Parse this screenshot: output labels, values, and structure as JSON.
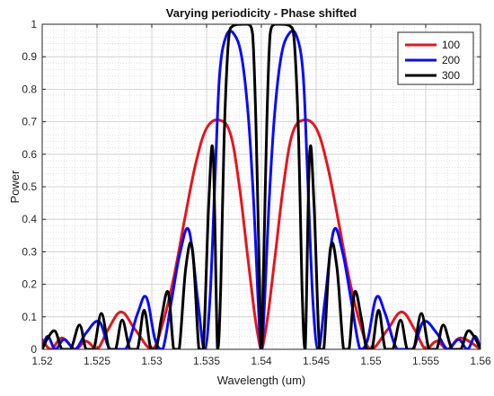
{
  "chart_data": {
    "type": "line",
    "title": "Varying periodicity - Phase shifted",
    "xlabel": "Wavelength (um)",
    "ylabel": "Power",
    "xlim": [
      1.52,
      1.56
    ],
    "ylim": [
      0,
      1
    ],
    "xticks": [
      "1.52",
      "1.525",
      "1.53",
      "1.535",
      "1.54",
      "1.545",
      "1.55",
      "1.555",
      "1.56"
    ],
    "yticks": [
      "0",
      "0.1",
      "0.2",
      "0.3",
      "0.4",
      "0.5",
      "0.6",
      "0.7",
      "0.8",
      "0.9",
      "1"
    ],
    "grid": true,
    "minor_grid": true,
    "legend_position": "top-right",
    "series": [
      {
        "name": "100",
        "color": "#e8141c",
        "points": [
          [
            1.52,
            0.03
          ],
          [
            1.5208,
            0.0
          ],
          [
            1.5218,
            0.035
          ],
          [
            1.523,
            0.0
          ],
          [
            1.524,
            0.025
          ],
          [
            1.525,
            0.0
          ],
          [
            1.526,
            0.06
          ],
          [
            1.5272,
            0.115
          ],
          [
            1.5285,
            0.06
          ],
          [
            1.53,
            0.0
          ],
          [
            1.531,
            0.08
          ],
          [
            1.532,
            0.22
          ],
          [
            1.533,
            0.4
          ],
          [
            1.534,
            0.57
          ],
          [
            1.535,
            0.68
          ],
          [
            1.5362,
            0.705
          ],
          [
            1.5372,
            0.66
          ],
          [
            1.538,
            0.5
          ],
          [
            1.5387,
            0.3
          ],
          [
            1.5393,
            0.13
          ],
          [
            1.5397,
            0.04
          ],
          [
            1.54,
            0.0
          ],
          [
            1.5403,
            0.04
          ],
          [
            1.5407,
            0.13
          ],
          [
            1.5413,
            0.3
          ],
          [
            1.542,
            0.5
          ],
          [
            1.5428,
            0.66
          ],
          [
            1.5438,
            0.705
          ],
          [
            1.545,
            0.68
          ],
          [
            1.546,
            0.57
          ],
          [
            1.547,
            0.4
          ],
          [
            1.548,
            0.22
          ],
          [
            1.549,
            0.08
          ],
          [
            1.55,
            0.0
          ],
          [
            1.5515,
            0.06
          ],
          [
            1.5528,
            0.115
          ],
          [
            1.554,
            0.06
          ],
          [
            1.555,
            0.0
          ],
          [
            1.556,
            0.025
          ],
          [
            1.557,
            0.0
          ],
          [
            1.5582,
            0.035
          ],
          [
            1.56,
            0.0
          ]
        ]
      },
      {
        "name": "200",
        "color": "#0a0aff",
        "points": [
          [
            1.52,
            0.0
          ],
          [
            1.5205,
            0.04
          ],
          [
            1.5212,
            0.0
          ],
          [
            1.522,
            0.03
          ],
          [
            1.523,
            0.0
          ],
          [
            1.524,
            0.05
          ],
          [
            1.5252,
            0.085
          ],
          [
            1.5262,
            0.0
          ],
          [
            1.5276,
            0.0
          ],
          [
            1.5287,
            0.11
          ],
          [
            1.5295,
            0.16
          ],
          [
            1.5303,
            0.03
          ],
          [
            1.531,
            0.0
          ],
          [
            1.5318,
            0.15
          ],
          [
            1.5326,
            0.3
          ],
          [
            1.5334,
            0.365
          ],
          [
            1.5342,
            0.15
          ],
          [
            1.5348,
            0.0
          ],
          [
            1.5353,
            0.15
          ],
          [
            1.5358,
            0.55
          ],
          [
            1.5362,
            0.85
          ],
          [
            1.5368,
            0.965
          ],
          [
            1.5375,
            0.97
          ],
          [
            1.5382,
            0.9
          ],
          [
            1.5388,
            0.72
          ],
          [
            1.5393,
            0.45
          ],
          [
            1.5397,
            0.15
          ],
          [
            1.54,
            0.0
          ],
          [
            1.5403,
            0.15
          ],
          [
            1.5407,
            0.45
          ],
          [
            1.5412,
            0.72
          ],
          [
            1.5418,
            0.9
          ],
          [
            1.5425,
            0.97
          ],
          [
            1.5432,
            0.965
          ],
          [
            1.5438,
            0.85
          ],
          [
            1.5442,
            0.55
          ],
          [
            1.5447,
            0.15
          ],
          [
            1.5452,
            0.0
          ],
          [
            1.5458,
            0.15
          ],
          [
            1.5466,
            0.365
          ],
          [
            1.5474,
            0.3
          ],
          [
            1.5482,
            0.15
          ],
          [
            1.549,
            0.0
          ],
          [
            1.5497,
            0.03
          ],
          [
            1.5505,
            0.16
          ],
          [
            1.5513,
            0.11
          ],
          [
            1.5524,
            0.0
          ],
          [
            1.5538,
            0.0
          ],
          [
            1.5548,
            0.085
          ],
          [
            1.556,
            0.05
          ],
          [
            1.557,
            0.0
          ],
          [
            1.558,
            0.03
          ],
          [
            1.5588,
            0.0
          ],
          [
            1.5595,
            0.04
          ],
          [
            1.56,
            0.0
          ]
        ]
      },
      {
        "name": "300",
        "color": "#000000",
        "points": [
          [
            1.52,
            0.0
          ],
          [
            1.5206,
            0.04
          ],
          [
            1.5212,
            0.055
          ],
          [
            1.5218,
            0.0
          ],
          [
            1.5226,
            0.0
          ],
          [
            1.5234,
            0.075
          ],
          [
            1.524,
            0.0
          ],
          [
            1.5247,
            0.0
          ],
          [
            1.5254,
            0.11
          ],
          [
            1.5261,
            0.0
          ],
          [
            1.5267,
            0.0
          ],
          [
            1.5273,
            0.09
          ],
          [
            1.528,
            0.0
          ],
          [
            1.5287,
            0.0
          ],
          [
            1.5293,
            0.12
          ],
          [
            1.5299,
            0.0
          ],
          [
            1.5304,
            0.0
          ],
          [
            1.5309,
            0.1
          ],
          [
            1.5315,
            0.175
          ],
          [
            1.532,
            0.0
          ],
          [
            1.5325,
            0.0
          ],
          [
            1.5331,
            0.25
          ],
          [
            1.5337,
            0.31
          ],
          [
            1.5343,
            0.0
          ],
          [
            1.5347,
            0.0
          ],
          [
            1.5352,
            0.45
          ],
          [
            1.5356,
            0.6
          ],
          [
            1.536,
            0.0
          ],
          [
            1.5363,
            0.2
          ],
          [
            1.5366,
            0.65
          ],
          [
            1.537,
            0.95
          ],
          [
            1.5374,
            0.995
          ],
          [
            1.5382,
            1.0
          ],
          [
            1.5388,
            1.0
          ],
          [
            1.5392,
            0.97
          ],
          [
            1.5395,
            0.7
          ],
          [
            1.5398,
            0.25
          ],
          [
            1.54,
            0.0
          ],
          [
            1.5402,
            0.25
          ],
          [
            1.5405,
            0.7
          ],
          [
            1.5408,
            0.97
          ],
          [
            1.5412,
            1.0
          ],
          [
            1.5418,
            1.0
          ],
          [
            1.5426,
            0.995
          ],
          [
            1.543,
            0.95
          ],
          [
            1.5434,
            0.65
          ],
          [
            1.5437,
            0.2
          ],
          [
            1.544,
            0.0
          ],
          [
            1.5444,
            0.6
          ],
          [
            1.5448,
            0.45
          ],
          [
            1.5453,
            0.0
          ],
          [
            1.5457,
            0.0
          ],
          [
            1.5463,
            0.31
          ],
          [
            1.5469,
            0.25
          ],
          [
            1.5475,
            0.0
          ],
          [
            1.548,
            0.0
          ],
          [
            1.5485,
            0.175
          ],
          [
            1.5491,
            0.1
          ],
          [
            1.5496,
            0.0
          ],
          [
            1.5501,
            0.0
          ],
          [
            1.5507,
            0.12
          ],
          [
            1.5513,
            0.0
          ],
          [
            1.552,
            0.0
          ],
          [
            1.5527,
            0.09
          ],
          [
            1.5533,
            0.0
          ],
          [
            1.5539,
            0.0
          ],
          [
            1.5546,
            0.11
          ],
          [
            1.5553,
            0.0
          ],
          [
            1.556,
            0.0
          ],
          [
            1.5566,
            0.075
          ],
          [
            1.5574,
            0.0
          ],
          [
            1.5582,
            0.0
          ],
          [
            1.5588,
            0.055
          ],
          [
            1.5594,
            0.04
          ],
          [
            1.56,
            0.0
          ]
        ]
      }
    ]
  }
}
